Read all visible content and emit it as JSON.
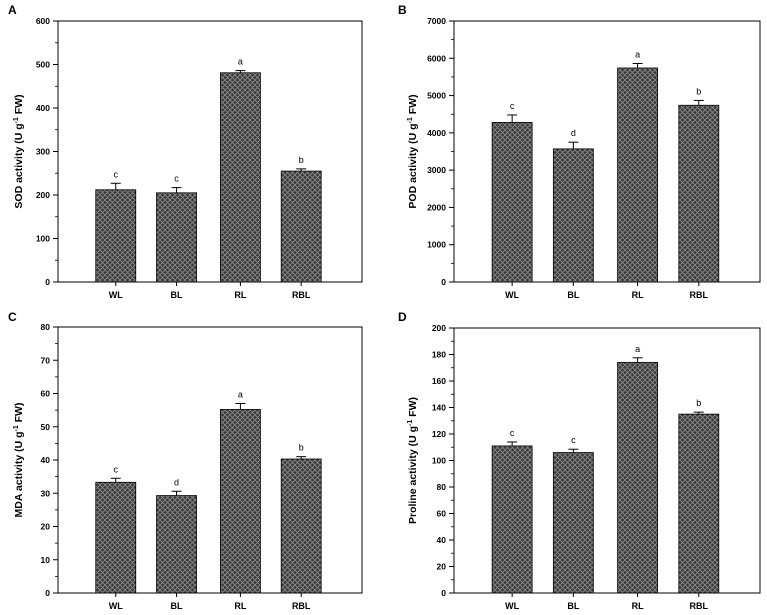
{
  "chart_data": [
    {
      "panel": "A",
      "type": "bar",
      "categories": [
        "WL",
        "BL",
        "RL",
        "RBL"
      ],
      "values": [
        212,
        205,
        481,
        255
      ],
      "errors": [
        15,
        12,
        5,
        5
      ],
      "significance": [
        "c",
        "c",
        "a",
        "b"
      ],
      "ylabel_main": "SOD activity (U g",
      "ylabel_exp": "-1",
      "ylabel_end": " FW)",
      "ylim": [
        0,
        600
      ],
      "yticks": [
        "0",
        "100",
        "200",
        "300",
        "400",
        "500",
        "600"
      ],
      "ytick_step": 100
    },
    {
      "panel": "B",
      "type": "bar",
      "categories": [
        "WL",
        "BL",
        "RL",
        "RBL"
      ],
      "values": [
        4280,
        3570,
        5740,
        4740
      ],
      "errors": [
        200,
        180,
        120,
        130
      ],
      "significance": [
        "c",
        "d",
        "a",
        "b"
      ],
      "ylabel_main": "POD activity (U g",
      "ylabel_exp": "-1",
      "ylabel_end": " FW)",
      "ylim": [
        0,
        7000
      ],
      "yticks": [
        "0",
        "1000",
        "2000",
        "3000",
        "4000",
        "5000",
        "6000",
        "7000"
      ],
      "ytick_step": 1000
    },
    {
      "panel": "C",
      "type": "bar",
      "categories": [
        "WL",
        "BL",
        "RL",
        "RBL"
      ],
      "values": [
        33.3,
        29.3,
        55.2,
        40.3
      ],
      "errors": [
        1.2,
        1.3,
        1.8,
        0.7
      ],
      "significance": [
        "c",
        "d",
        "a",
        "b"
      ],
      "ylabel_main": "MDA activity (U g",
      "ylabel_exp": "-1",
      "ylabel_end": " FW)",
      "ylim": [
        0,
        80
      ],
      "yticks": [
        "0",
        "10",
        "20",
        "30",
        "40",
        "50",
        "60",
        "70",
        "80"
      ],
      "ytick_step": 10
    },
    {
      "panel": "D",
      "type": "bar",
      "categories": [
        "WL",
        "BL",
        "RL",
        "RBL"
      ],
      "values": [
        111,
        106,
        174,
        135
      ],
      "errors": [
        3,
        2.5,
        3.5,
        1.5
      ],
      "significance": [
        "c",
        "c",
        "a",
        "b"
      ],
      "ylabel_main": "Proline activity (U g",
      "ylabel_exp": "-1",
      "ylabel_end": " FW)",
      "ylim": [
        0,
        200
      ],
      "yticks": [
        "0",
        "20",
        "40",
        "60",
        "80",
        "100",
        "120",
        "140",
        "160",
        "180",
        "200"
      ],
      "ytick_step": 20
    }
  ],
  "colors": {
    "bar_fill": "#3a3a3a",
    "bar_hatch": "#8a8a8a",
    "axis": "#000000"
  }
}
